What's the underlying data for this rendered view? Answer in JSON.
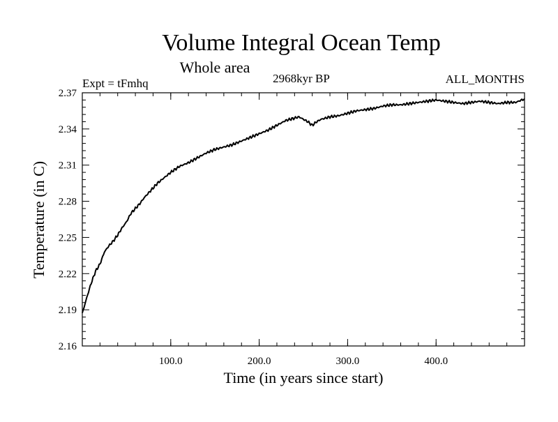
{
  "chart_data": {
    "type": "line",
    "title": "Volume Integral Ocean Temp",
    "subtitle": "Whole area",
    "annotations": {
      "left": "Expt = tFmhq",
      "center": "2968kyr BP",
      "right": "ALL_MONTHS"
    },
    "xlabel": "Time (in years since start)",
    "ylabel": "Temperature (in C)",
    "xlim": [
      0,
      500
    ],
    "ylim": [
      2.16,
      2.37
    ],
    "x_ticks": [
      100,
      200,
      300,
      400
    ],
    "x_tick_labels": [
      "100.0",
      "200.0",
      "300.0",
      "400.0"
    ],
    "y_ticks": [
      2.16,
      2.19,
      2.22,
      2.25,
      2.28,
      2.31,
      2.34,
      2.37
    ],
    "y_tick_labels": [
      "2.16",
      "2.19",
      "2.22",
      "2.25",
      "2.28",
      "2.31",
      "2.34",
      "2.37"
    ],
    "grid": false,
    "series": [
      {
        "name": "Volume Integral Ocean Temp",
        "color": "#000000",
        "x": [
          0,
          5,
          10,
          15,
          20,
          25,
          30,
          35,
          40,
          45,
          50,
          55,
          60,
          65,
          70,
          75,
          80,
          85,
          90,
          95,
          100,
          110,
          120,
          130,
          140,
          150,
          160,
          170,
          180,
          190,
          200,
          210,
          220,
          230,
          240,
          245,
          250,
          255,
          260,
          265,
          270,
          280,
          290,
          300,
          310,
          320,
          330,
          340,
          350,
          360,
          370,
          380,
          390,
          400,
          410,
          420,
          430,
          440,
          450,
          460,
          470,
          480,
          490,
          500
        ],
        "values": [
          2.187,
          2.2,
          2.212,
          2.222,
          2.228,
          2.238,
          2.243,
          2.247,
          2.252,
          2.258,
          2.263,
          2.27,
          2.274,
          2.278,
          2.283,
          2.287,
          2.291,
          2.295,
          2.298,
          2.301,
          2.304,
          2.309,
          2.312,
          2.316,
          2.32,
          2.323,
          2.325,
          2.327,
          2.33,
          2.333,
          2.336,
          2.339,
          2.343,
          2.347,
          2.349,
          2.35,
          2.348,
          2.346,
          2.343,
          2.346,
          2.348,
          2.35,
          2.351,
          2.353,
          2.355,
          2.356,
          2.357,
          2.359,
          2.36,
          2.36,
          2.361,
          2.362,
          2.363,
          2.364,
          2.363,
          2.362,
          2.361,
          2.362,
          2.363,
          2.362,
          2.361,
          2.362,
          2.362,
          2.365
        ]
      }
    ]
  }
}
